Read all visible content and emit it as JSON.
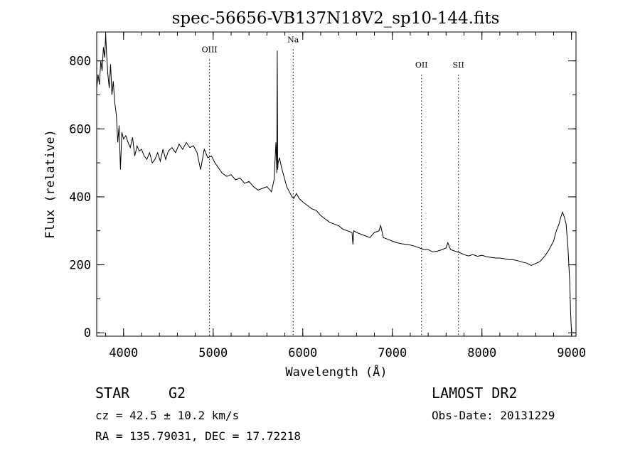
{
  "chart_data": {
    "type": "line",
    "title": "spec-56656-VB137N18V2_sp10-144.fits",
    "xlabel": "Wavelength (Å)",
    "ylabel": "Flux (relative)",
    "xlim": [
      3700,
      9050
    ],
    "ylim": [
      -10,
      885
    ],
    "x_ticks": [
      4000,
      5000,
      6000,
      7000,
      8000,
      9000
    ],
    "y_ticks": [
      0,
      200,
      400,
      600,
      800
    ],
    "x_minor_step": 200,
    "y_minor_step": 100,
    "grid": false,
    "series": [
      {
        "x": [
          3700,
          3715,
          3730,
          3745,
          3760,
          3775,
          3790,
          3800,
          3810,
          3825,
          3840,
          3855,
          3870,
          3885,
          3900,
          3920,
          3935,
          3950,
          3965,
          3980,
          4000,
          4025,
          4050,
          4075,
          4100,
          4125,
          4150,
          4175,
          4200,
          4230,
          4260,
          4290,
          4320,
          4350,
          4380,
          4410,
          4440,
          4470,
          4500,
          4540,
          4580,
          4620,
          4660,
          4700,
          4740,
          4780,
          4820,
          4860,
          4900,
          4940,
          4980,
          5020,
          5060,
          5100,
          5150,
          5200,
          5250,
          5300,
          5350,
          5400,
          5450,
          5500,
          5550,
          5600,
          5650,
          5680,
          5700,
          5710,
          5715,
          5720,
          5725,
          5740,
          5760,
          5780,
          5800,
          5820,
          5850,
          5880,
          5900,
          5930,
          5960,
          6000,
          6050,
          6100,
          6150,
          6200,
          6250,
          6300,
          6350,
          6400,
          6450,
          6500,
          6550,
          6560,
          6570,
          6600,
          6650,
          6700,
          6750,
          6800,
          6850,
          6870,
          6900,
          6950,
          7000,
          7050,
          7100,
          7150,
          7200,
          7250,
          7300,
          7350,
          7400,
          7450,
          7500,
          7550,
          7600,
          7620,
          7650,
          7700,
          7750,
          7800,
          7850,
          7900,
          7950,
          8000,
          8050,
          8100,
          8150,
          8200,
          8250,
          8300,
          8350,
          8400,
          8450,
          8500,
          8550,
          8600,
          8650,
          8700,
          8750,
          8800,
          8830,
          8860,
          8880,
          8900,
          8920,
          8940,
          8960,
          8980,
          8990,
          9000,
          9010
        ],
        "values": [
          720,
          760,
          730,
          800,
          770,
          840,
          810,
          880,
          820,
          760,
          720,
          790,
          700,
          740,
          680,
          640,
          560,
          610,
          480,
          590,
          570,
          580,
          560,
          545,
          575,
          520,
          550,
          535,
          540,
          520,
          510,
          530,
          500,
          510,
          530,
          505,
          540,
          510,
          535,
          545,
          530,
          555,
          540,
          560,
          545,
          550,
          530,
          480,
          540,
          515,
          520,
          500,
          485,
          470,
          460,
          465,
          450,
          455,
          440,
          445,
          430,
          420,
          425,
          430,
          415,
          450,
          560,
          470,
          830,
          480,
          500,
          515,
          490,
          470,
          450,
          430,
          415,
          400,
          395,
          410,
          395,
          385,
          375,
          365,
          360,
          345,
          335,
          325,
          320,
          315,
          305,
          300,
          295,
          260,
          300,
          295,
          290,
          285,
          280,
          295,
          300,
          315,
          280,
          275,
          270,
          265,
          262,
          260,
          258,
          255,
          250,
          245,
          245,
          238,
          240,
          244,
          250,
          265,
          245,
          240,
          236,
          230,
          226,
          230,
          225,
          228,
          224,
          222,
          220,
          220,
          218,
          215,
          215,
          212,
          208,
          205,
          198,
          204,
          210,
          225,
          245,
          270,
          300,
          320,
          340,
          355,
          340,
          320,
          250,
          150,
          60,
          0,
          0
        ]
      }
    ],
    "annotations": [
      {
        "label": "OIII",
        "x": 4959,
        "label_y": 825
      },
      {
        "label": "Na",
        "x": 5893,
        "label_y": 855
      },
      {
        "label": "OII",
        "x": 7325,
        "label_y": 780
      },
      {
        "label": "SII",
        "x": 7738,
        "label_y": 780
      }
    ]
  },
  "footer": {
    "object_type": "STAR",
    "subclass": "G2",
    "redshift": "cz = 42.5 ± 10.2 km/s",
    "coords": "RA = 135.79031, DEC =  17.72218",
    "survey": "LAMOST DR2",
    "obs_date": "Obs-Date: 20131229"
  }
}
